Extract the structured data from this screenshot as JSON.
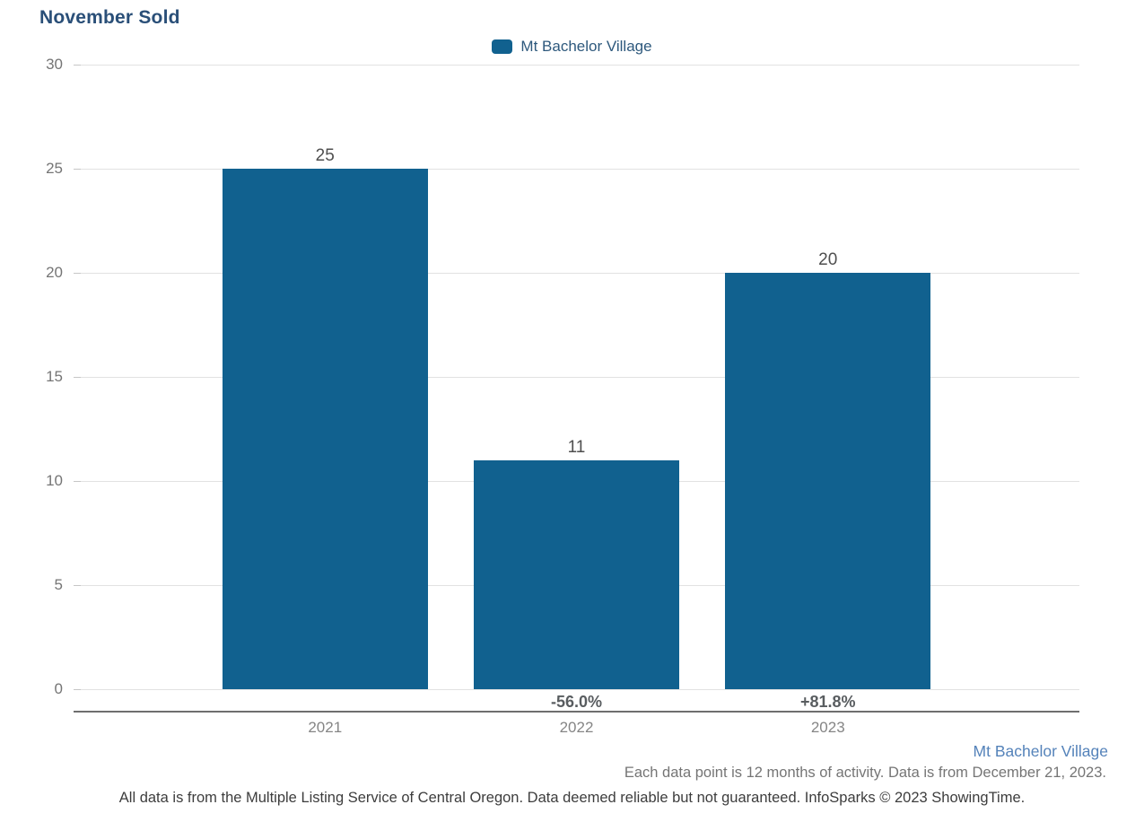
{
  "title": "November Sold",
  "legend": {
    "label": "Mt Bachelor Village"
  },
  "chart_data": {
    "type": "bar",
    "title": "November Sold",
    "categories": [
      "2021",
      "2022",
      "2023"
    ],
    "series": [
      {
        "name": "Mt Bachelor Village",
        "values": [
          25,
          11,
          20
        ]
      }
    ],
    "value_labels": [
      "25",
      "11",
      "20"
    ],
    "pct_change_labels": [
      "",
      "-56.0%",
      "+81.8%"
    ],
    "xlabel": "",
    "ylabel": "",
    "ylim": [
      0,
      30
    ],
    "yticks": [
      0,
      5,
      10,
      15,
      20,
      25,
      30
    ],
    "grid": "horizontal",
    "legend_position": "top-center",
    "bar_color": "#11618f"
  },
  "footer": {
    "series_label": "Mt Bachelor Village",
    "note_line1": "Each data point is 12 months of activity. Data is from December 21, 2023.",
    "note_line2": "All data is from the Multiple Listing Service of Central Oregon. Data deemed reliable but not guaranteed. InfoSparks © 2023 ShowingTime."
  },
  "colors": {
    "bar": "#11618f",
    "title": "#2a4f78",
    "legend_label": "#2e597d",
    "footer_series": "#5583ba",
    "gridline": "#e2e2e2",
    "axis_line": "#6e6e6e"
  }
}
